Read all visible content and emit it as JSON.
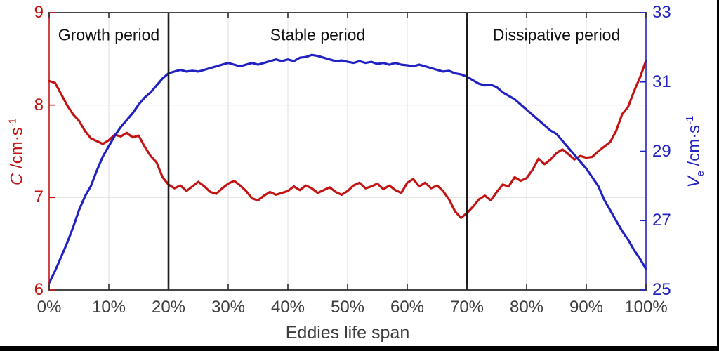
{
  "figure": {
    "background": "#ffffff",
    "box_color": "#2b2b2b",
    "grid_color": "#e3e3e3"
  },
  "window": {
    "edge_color": "#000000"
  },
  "chart_data": {
    "type": "line",
    "title": "",
    "xlabel": "Eddies life span",
    "x_tick_values": [
      0,
      10,
      20,
      30,
      40,
      50,
      60,
      70,
      80,
      90,
      100
    ],
    "x_tick_labels": [
      "0%",
      "10%",
      "20%",
      "30%",
      "40%",
      "50%",
      "60%",
      "70%",
      "80%",
      "90%",
      "100%"
    ],
    "left_axis": {
      "label_var": "C",
      "label_unit": " /cm·s",
      "label_sup": "-1",
      "ticks": [
        6,
        7,
        8,
        9
      ],
      "range": [
        6,
        9
      ],
      "color": "#c31414"
    },
    "right_axis": {
      "label_var": "V",
      "label_sub": "e",
      "label_unit": " /cm·s",
      "label_sup": "-1",
      "ticks": [
        25,
        27,
        29,
        31,
        33
      ],
      "range": [
        25,
        33
      ],
      "color": "#2222c3"
    },
    "grid": {
      "show": true,
      "legend": "none"
    },
    "period_dividers": {
      "x_values": [
        20,
        70
      ],
      "color": "#1a1a1a"
    },
    "annotations": [
      {
        "text": "Growth period",
        "x_percent": 10
      },
      {
        "text": "Stable period",
        "x_percent": 45
      },
      {
        "text": "Dissipative period",
        "x_percent": 85
      }
    ],
    "series": [
      {
        "name": "C",
        "axis": "left",
        "color": "#c31414",
        "x": [
          0,
          1,
          2,
          3,
          4,
          5,
          6,
          7,
          8,
          9,
          10,
          11,
          12,
          13,
          14,
          15,
          16,
          17,
          18,
          19,
          20,
          21,
          22,
          23,
          24,
          25,
          26,
          27,
          28,
          29,
          30,
          31,
          32,
          33,
          34,
          35,
          36,
          37,
          38,
          39,
          40,
          41,
          42,
          43,
          44,
          45,
          46,
          47,
          48,
          49,
          50,
          51,
          52,
          53,
          54,
          55,
          56,
          57,
          58,
          59,
          60,
          61,
          62,
          63,
          64,
          65,
          66,
          67,
          68,
          69,
          70,
          71,
          72,
          73,
          74,
          75,
          76,
          77,
          78,
          79,
          80,
          81,
          82,
          83,
          84,
          85,
          86,
          87,
          88,
          89,
          90,
          91,
          92,
          93,
          94,
          95,
          96,
          97,
          98,
          99,
          100
        ],
        "values": [
          8.26,
          8.24,
          8.12,
          8.0,
          7.9,
          7.83,
          7.72,
          7.64,
          7.61,
          7.58,
          7.62,
          7.68,
          7.66,
          7.7,
          7.65,
          7.67,
          7.55,
          7.45,
          7.38,
          7.22,
          7.14,
          7.1,
          7.13,
          7.07,
          7.12,
          7.17,
          7.12,
          7.06,
          7.04,
          7.1,
          7.15,
          7.18,
          7.13,
          7.07,
          6.99,
          6.97,
          7.02,
          7.06,
          7.03,
          7.05,
          7.07,
          7.12,
          7.08,
          7.13,
          7.1,
          7.05,
          7.08,
          7.11,
          7.06,
          7.03,
          7.07,
          7.13,
          7.16,
          7.1,
          7.12,
          7.15,
          7.09,
          7.13,
          7.08,
          7.05,
          7.16,
          7.2,
          7.12,
          7.16,
          7.1,
          7.13,
          7.07,
          6.98,
          6.85,
          6.78,
          6.83,
          6.9,
          6.98,
          7.02,
          6.97,
          7.06,
          7.14,
          7.12,
          7.22,
          7.18,
          7.21,
          7.3,
          7.42,
          7.36,
          7.41,
          7.48,
          7.52,
          7.47,
          7.41,
          7.45,
          7.43,
          7.44,
          7.5,
          7.55,
          7.6,
          7.72,
          7.9,
          7.98,
          8.15,
          8.3,
          8.48
        ]
      },
      {
        "name": "Ve",
        "axis": "right",
        "color": "#2222c3",
        "x": [
          0,
          1,
          2,
          3,
          4,
          5,
          6,
          7,
          8,
          9,
          10,
          11,
          12,
          13,
          14,
          15,
          16,
          17,
          18,
          19,
          20,
          21,
          22,
          23,
          24,
          25,
          26,
          27,
          28,
          29,
          30,
          31,
          32,
          33,
          34,
          35,
          36,
          37,
          38,
          39,
          40,
          41,
          42,
          43,
          44,
          45,
          46,
          47,
          48,
          49,
          50,
          51,
          52,
          53,
          54,
          55,
          56,
          57,
          58,
          59,
          60,
          61,
          62,
          63,
          64,
          65,
          66,
          67,
          68,
          69,
          70,
          71,
          72,
          73,
          74,
          75,
          76,
          77,
          78,
          79,
          80,
          81,
          82,
          83,
          84,
          85,
          86,
          87,
          88,
          89,
          90,
          91,
          92,
          93,
          94,
          95,
          96,
          97,
          98,
          99,
          100
        ],
        "values": [
          25.2,
          25.55,
          25.95,
          26.35,
          26.8,
          27.3,
          27.7,
          28.0,
          28.45,
          28.85,
          29.15,
          29.45,
          29.7,
          29.9,
          30.1,
          30.35,
          30.55,
          30.7,
          30.9,
          31.1,
          31.25,
          31.3,
          31.35,
          31.3,
          31.32,
          31.3,
          31.35,
          31.4,
          31.45,
          31.5,
          31.55,
          31.5,
          31.45,
          31.5,
          31.55,
          31.5,
          31.55,
          31.6,
          31.65,
          31.6,
          31.65,
          31.6,
          31.7,
          31.72,
          31.78,
          31.75,
          31.7,
          31.65,
          31.6,
          31.62,
          31.58,
          31.55,
          31.6,
          31.55,
          31.58,
          31.52,
          31.55,
          31.5,
          31.55,
          31.5,
          31.48,
          31.45,
          31.5,
          31.45,
          31.4,
          31.35,
          31.3,
          31.32,
          31.25,
          31.22,
          31.15,
          31.05,
          30.95,
          30.9,
          30.92,
          30.85,
          30.7,
          30.6,
          30.5,
          30.35,
          30.2,
          30.05,
          29.9,
          29.75,
          29.6,
          29.5,
          29.3,
          29.1,
          28.9,
          28.7,
          28.5,
          28.25,
          28.0,
          27.6,
          27.3,
          27.0,
          26.7,
          26.45,
          26.15,
          25.9,
          25.6
        ]
      }
    ]
  }
}
